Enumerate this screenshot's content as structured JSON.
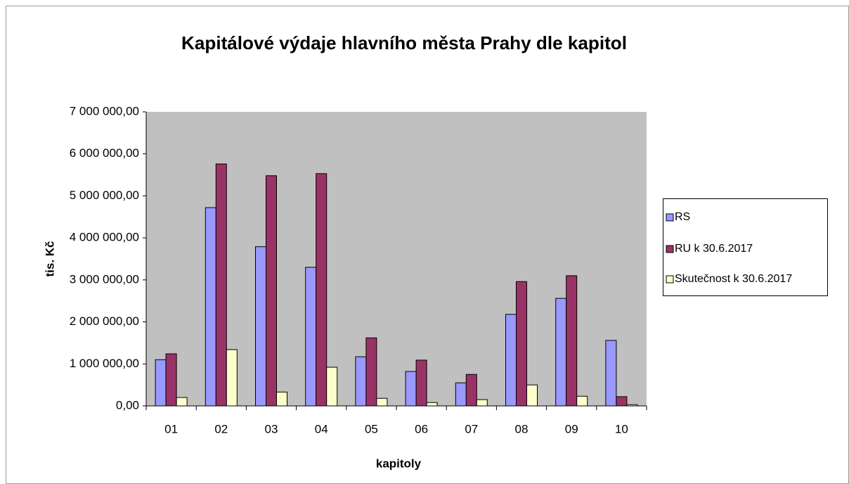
{
  "chart_data": {
    "type": "bar",
    "title": "Kapitálové výdaje hlavního města Prahy dle kapitol",
    "x_label": "kapitoly",
    "y_label": "tis. Kč",
    "categories": [
      "01",
      "02",
      "03",
      "04",
      "05",
      "06",
      "07",
      "08",
      "09",
      "10"
    ],
    "series": [
      {
        "name": "RS",
        "color": "#9999ff",
        "values": [
          1100000,
          4720000,
          3790000,
          3300000,
          1170000,
          820000,
          550000,
          2180000,
          2560000,
          1560000
        ]
      },
      {
        "name": "RU k 30.6.2017",
        "color": "#993366",
        "values": [
          1240000,
          5760000,
          5480000,
          5530000,
          1620000,
          1090000,
          750000,
          2960000,
          3100000,
          220000
        ]
      },
      {
        "name": "Skutečnost k 30.6.2017",
        "color": "#ffffcc",
        "values": [
          200000,
          1340000,
          330000,
          920000,
          180000,
          80000,
          150000,
          500000,
          230000,
          30000
        ]
      }
    ],
    "ylim": [
      0,
      7000000
    ],
    "yticks": [
      {
        "value": 0,
        "label": "0,00"
      },
      {
        "value": 1000000,
        "label": "1 000 000,00"
      },
      {
        "value": 2000000,
        "label": "2 000 000,00"
      },
      {
        "value": 3000000,
        "label": "3 000 000,00"
      },
      {
        "value": 4000000,
        "label": "4 000 000,00"
      },
      {
        "value": 5000000,
        "label": "5 000 000,00"
      },
      {
        "value": 6000000,
        "label": "6 000 000,00"
      },
      {
        "value": 7000000,
        "label": "7 000 000,00"
      }
    ],
    "grid": false,
    "legend": "right"
  }
}
